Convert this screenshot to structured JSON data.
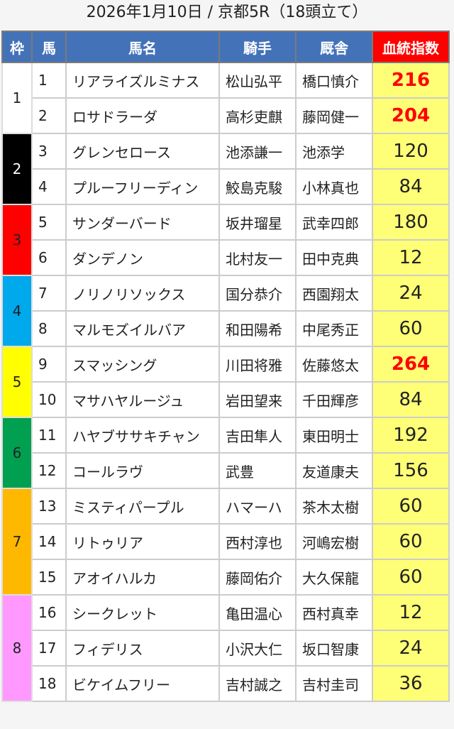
{
  "title": "2026年1月10日 / 京都5R（18頭立て）",
  "headers": {
    "waku": "枠",
    "umaban": "馬",
    "name": "馬名",
    "jockey": "騎手",
    "trainer": "厩舎",
    "index": "血統指数"
  },
  "colors": {
    "header": "#4472b8",
    "index_header": "#ff0000",
    "index_cell": "#ffff77",
    "highlight_text": "#ff0000"
  },
  "waku_colors": {
    "1": "#ffffff",
    "2": "#000000",
    "3": "#ff0000",
    "4": "#00a8ec",
    "5": "#ffff00",
    "6": "#00a050",
    "7": "#ffb800",
    "8": "#ff99ff"
  },
  "rows": [
    {
      "waku": "1",
      "num": "1",
      "name": "リアライズルミナス",
      "jockey": "松山弘平",
      "trainer": "橋口慎介",
      "index": "216",
      "highlight": true
    },
    {
      "waku": "1",
      "num": "2",
      "name": "ロサドラーダ",
      "jockey": "高杉吏麒",
      "trainer": "藤岡健一",
      "index": "204",
      "highlight": true
    },
    {
      "waku": "2",
      "num": "3",
      "name": "グレンセロース",
      "jockey": "池添謙一",
      "trainer": "池添学",
      "index": "120"
    },
    {
      "waku": "2",
      "num": "4",
      "name": "プルーフリーディン",
      "jockey": "鮫島克駿",
      "trainer": "小林真也",
      "index": "84"
    },
    {
      "waku": "3",
      "num": "5",
      "name": "サンダーバード",
      "jockey": "坂井瑠星",
      "trainer": "武幸四郎",
      "index": "180"
    },
    {
      "waku": "3",
      "num": "6",
      "name": "ダンデノン",
      "jockey": "北村友一",
      "trainer": "田中克典",
      "index": "12"
    },
    {
      "waku": "4",
      "num": "7",
      "name": "ノリノリソックス",
      "jockey": "国分恭介",
      "trainer": "西園翔太",
      "index": "24"
    },
    {
      "waku": "4",
      "num": "8",
      "name": "マルモズイルバア",
      "jockey": "和田陽希",
      "trainer": "中尾秀正",
      "index": "60"
    },
    {
      "waku": "5",
      "num": "9",
      "name": "スマッシング",
      "jockey": "川田将雅",
      "trainer": "佐藤悠太",
      "index": "264",
      "highlight": true
    },
    {
      "waku": "5",
      "num": "10",
      "name": "マサハヤルージュ",
      "jockey": "岩田望来",
      "trainer": "千田輝彦",
      "index": "84"
    },
    {
      "waku": "6",
      "num": "11",
      "name": "ハヤブササキチャン",
      "jockey": "吉田隼人",
      "trainer": "東田明士",
      "index": "192"
    },
    {
      "waku": "6",
      "num": "12",
      "name": "コールラヴ",
      "jockey": "武豊",
      "trainer": "友道康夫",
      "index": "156"
    },
    {
      "waku": "7",
      "num": "13",
      "name": "ミスティパープル",
      "jockey": "ハマーハ",
      "trainer": "茶木太樹",
      "index": "60"
    },
    {
      "waku": "7",
      "num": "14",
      "name": "リトゥリア",
      "jockey": "西村淳也",
      "trainer": "河嶋宏樹",
      "index": "60"
    },
    {
      "waku": "7",
      "num": "15",
      "name": "アオイハルカ",
      "jockey": "藤岡佑介",
      "trainer": "大久保龍",
      "index": "60"
    },
    {
      "waku": "8",
      "num": "16",
      "name": "シークレット",
      "jockey": "亀田温心",
      "trainer": "西村真幸",
      "index": "12"
    },
    {
      "waku": "8",
      "num": "17",
      "name": "フィデリス",
      "jockey": "小沢大仁",
      "trainer": "坂口智康",
      "index": "24"
    },
    {
      "waku": "8",
      "num": "18",
      "name": "ビケイムフリー",
      "jockey": "吉村誠之",
      "trainer": "吉村圭司",
      "index": "36"
    }
  ]
}
